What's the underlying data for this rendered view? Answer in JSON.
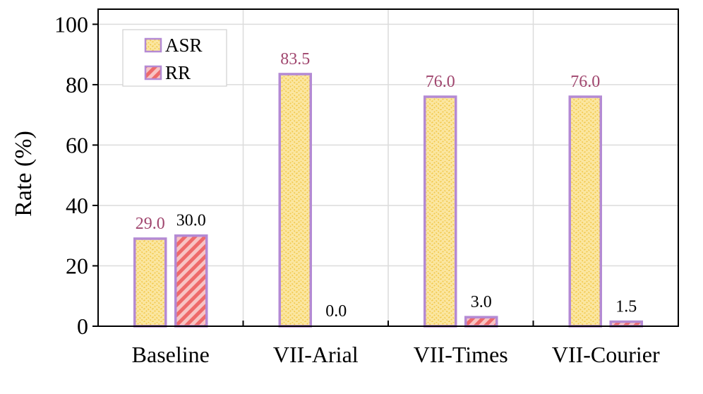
{
  "chart_data": {
    "type": "bar",
    "categories": [
      "Baseline",
      "VII-Arial",
      "VII-Times",
      "VII-Courier"
    ],
    "series": [
      {
        "name": "ASR",
        "values": [
          29.0,
          83.5,
          76.0,
          76.0
        ],
        "labels": [
          "29.0",
          "83.5",
          "76.0",
          "76.0"
        ]
      },
      {
        "name": "RR",
        "values": [
          30.0,
          0.0,
          3.0,
          1.5
        ],
        "labels": [
          "30.0",
          "0.0",
          "3.0",
          "1.5"
        ]
      }
    ],
    "ylabel": "Rate (%)",
    "xlabel": "",
    "ylim": [
      0,
      105
    ],
    "yticks": [
      0,
      20,
      40,
      60,
      80,
      100
    ],
    "ytick_labels": [
      "0",
      "20",
      "40",
      "60",
      "80",
      "100"
    ],
    "grid": true,
    "legend_position": "top-left",
    "colors": {
      "asr_fill": "#fbe6a0",
      "asr_hatch": "#f2c94c",
      "rr_fill": "#f7c4c4",
      "rr_hatch": "#ee6a6a",
      "bar_edge": "#b48ad4",
      "asr_label": "#a0466e",
      "rr_label": "#000000",
      "grid": "#dcdcdc"
    }
  }
}
